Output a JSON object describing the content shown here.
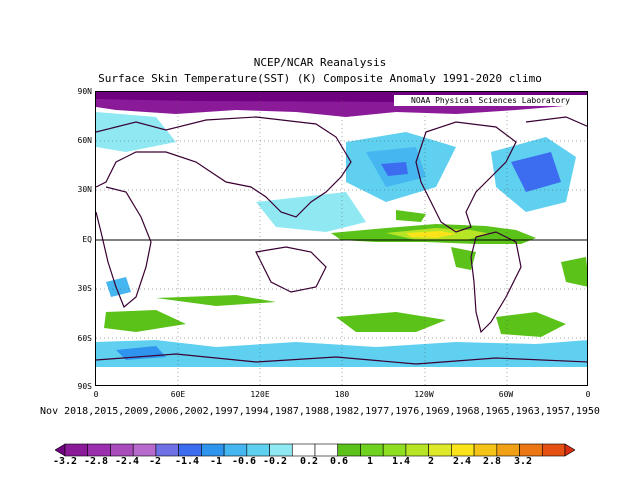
{
  "header": {
    "title": "NCEP/NCAR Reanalysis",
    "subtitle": "Surface Skin Temperature(SST) (K) Composite Anomaly 1991-2020 climo"
  },
  "map": {
    "credit": "NOAA Physical Sciences Laboratory",
    "lat_labels": [
      "90N",
      "60N",
      "30N",
      "EQ",
      "30S",
      "60S",
      "90S"
    ],
    "lon_labels": [
      "0",
      "60E",
      "120E",
      "180",
      "120W",
      "60W",
      "0"
    ],
    "composite_dates": "Nov 2018,2015,2009,2006,2002,1997,1994,1987,1988,1982,1977,1976,1969,1968,1965,1963,1957,1950"
  },
  "colorbar": {
    "labels": [
      "-3.2",
      "-2.8",
      "-2.4",
      "-2",
      "-1.4",
      "-1",
      "-0.6",
      "-0.2",
      "0.2",
      "0.6",
      "1",
      "1.4",
      "2",
      "2.4",
      "2.8",
      "3.2"
    ],
    "colors": [
      "#6e0080",
      "#8b1a99",
      "#9b2fae",
      "#a84cbc",
      "#b76acb",
      "#6f6fe6",
      "#3c6cf0",
      "#2f94ee",
      "#45b6ef",
      "#5fd0f0",
      "#8fe8f2",
      "#ffffff",
      "#ffffff",
      "#5bc219",
      "#6ed21e",
      "#8fde22",
      "#b8e426",
      "#dfe92b",
      "#fae31a",
      "#f5c315",
      "#f0a014",
      "#ec7613",
      "#e55012",
      "#d92e12"
    ]
  }
}
